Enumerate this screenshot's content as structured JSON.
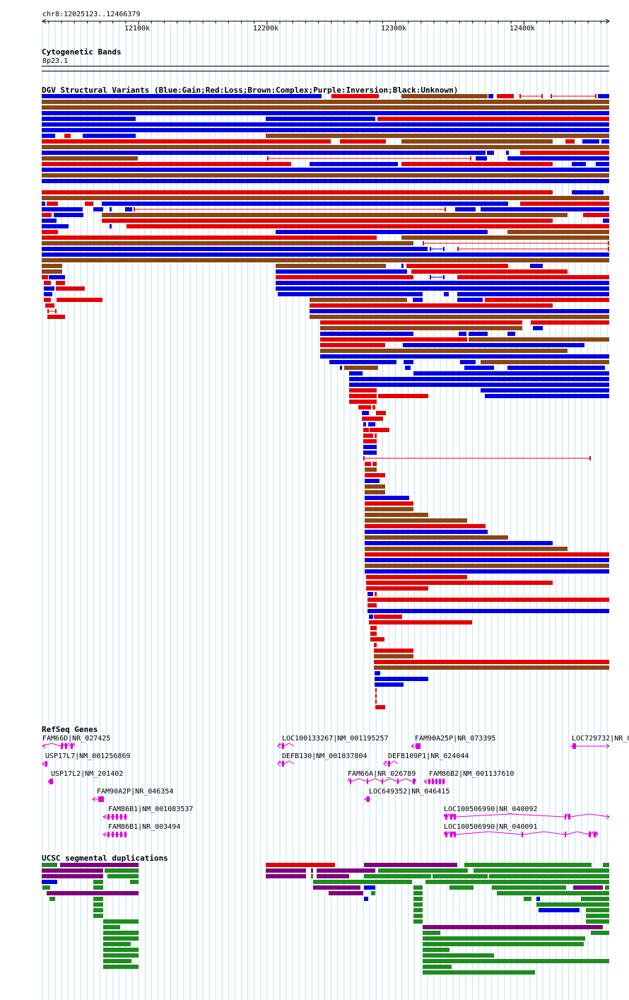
{
  "position": "chr8:12025123..12466379",
  "ruler": {
    "start_bp": 12025123,
    "end_bp": 12466379,
    "tick_labels": [
      {
        "bp": 12100000,
        "label": "12100k"
      },
      {
        "bp": 12200000,
        "label": "12200k"
      },
      {
        "bp": 12300000,
        "label": "12300k"
      },
      {
        "bp": 12400000,
        "label": "12400k"
      }
    ]
  },
  "tracks": {
    "cytoband": {
      "title": "Cytogenetic Bands",
      "band": "8p23.1"
    },
    "dgv": {
      "title": "DGV Structural Variants (Blue:Gain;Red:Loss;Brown:Complex;Purple:Inversion;Black:Unknown)"
    },
    "refseq": {
      "title": "RefSeq Genes"
    },
    "segdup": {
      "title": "UCSC segmental duplications"
    }
  },
  "colors": {
    "gain": "#0000e6",
    "loss": "#e60000",
    "complex": "#8b4513",
    "inversion": "#800080",
    "gene": "#e000e0",
    "segdup_green": "#1e8c1e",
    "segdup_purple": "#800080",
    "segdup_red": "#e60000",
    "segdup_blue": "#0000e6",
    "grid_line": "#bfe3f2"
  },
  "genes": [
    {
      "label": "FAM66D|NR_027425"
    },
    {
      "label": "USP17L7|NM_001256869"
    },
    {
      "label": "USP17L2|NM_201402"
    },
    {
      "label": "FAM90A2P|NR_046354"
    },
    {
      "label": "FAM86B1|NM_001083537"
    },
    {
      "label": "FAM86B1|NR_003494"
    },
    {
      "label": "LOC100133267|NM_001195257"
    },
    {
      "label": "DEFB130|NM_001037804"
    },
    {
      "label": "FAM66A|NR_026789"
    },
    {
      "label": "LOC649352|NR_046415"
    },
    {
      "label": "FAM90A25P|NR_073395"
    },
    {
      "label": "DEFB109P1|NR_024044"
    },
    {
      "label": "FAM86B2|NM_001137610"
    },
    {
      "label": "LOC100506990|NR_040092"
    },
    {
      "label": "LOC100506990|NR_040091"
    },
    {
      "label": "LOC729732|NR_0"
    }
  ]
}
